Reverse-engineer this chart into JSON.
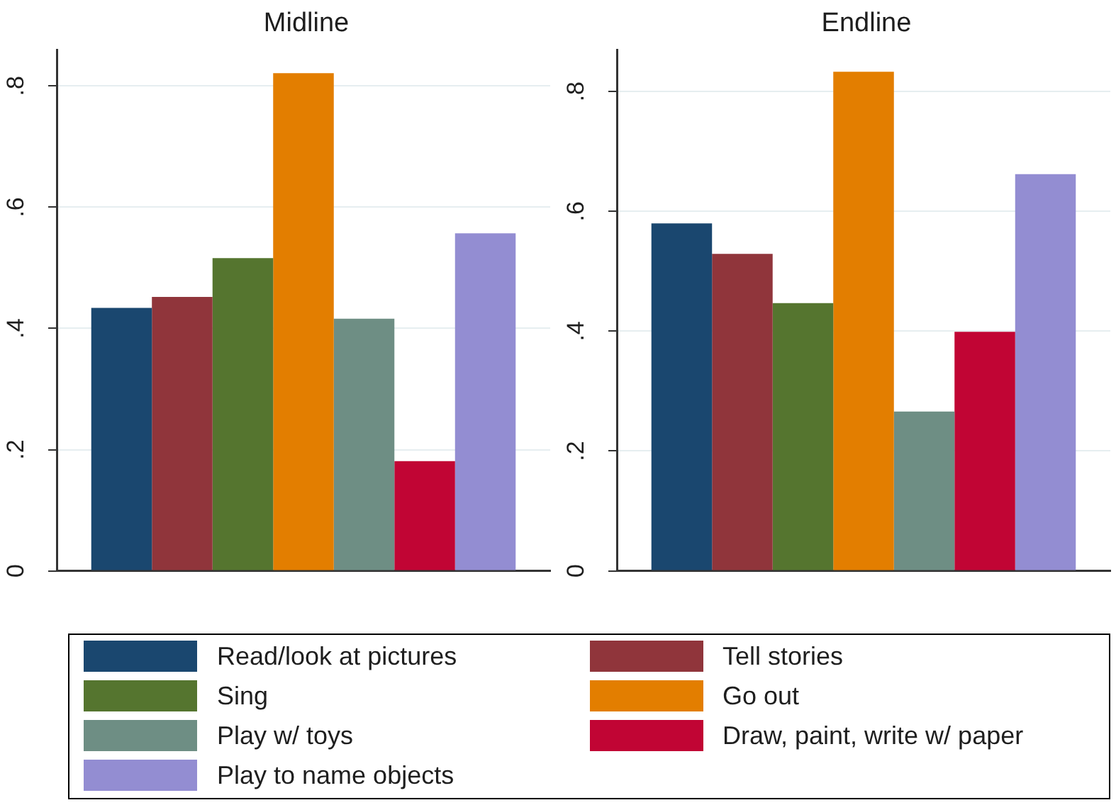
{
  "chart_data": [
    {
      "type": "bar",
      "title": "Midline",
      "categories": [
        null
      ],
      "ylim": [
        0,
        0.86
      ],
      "yticks": [
        0,
        {
          "value": 0.2,
          "label": ".2"
        },
        {
          "value": 0.4,
          "label": ".4"
        },
        {
          "value": 0.6,
          "label": ".6"
        },
        {
          "value": 0.8,
          "label": ".8"
        }
      ],
      "grid": "y",
      "tick_labels": "y",
      "legend": "bottom",
      "series": [
        {
          "name": "Read/look at pictures",
          "color": "#1a476f",
          "values": [
            0.434
          ]
        },
        {
          "name": "Tell stories",
          "color": "#90353b",
          "values": [
            0.452
          ]
        },
        {
          "name": "Sing",
          "color": "#55752f",
          "values": [
            0.516
          ]
        },
        {
          "name": "Go out",
          "color": "#e37e00",
          "values": [
            0.821
          ]
        },
        {
          "name": "Play w/ toys",
          "color": "#6e8e84",
          "values": [
            0.416
          ]
        },
        {
          "name": "Draw, paint, write w/ paper",
          "color": "#c10534",
          "values": [
            0.181
          ]
        },
        {
          "name": "Play to name objects",
          "color": "#938dd2",
          "values": [
            0.557
          ]
        }
      ]
    },
    {
      "type": "bar",
      "title": "Endline",
      "categories": [
        null
      ],
      "ylim": [
        0,
        0.87
      ],
      "yticks": [
        0,
        {
          "value": 0.2,
          "label": ".2"
        },
        {
          "value": 0.4,
          "label": ".4"
        },
        {
          "value": 0.6,
          "label": ".6"
        },
        {
          "value": 0.8,
          "label": ".8"
        }
      ],
      "grid": "y",
      "tick_labels": "y",
      "series": [
        {
          "color": "#1a476f",
          "values": [
            0.58
          ]
        },
        {
          "color": "#90353b",
          "values": [
            0.529
          ]
        },
        {
          "color": "#55752f",
          "values": [
            0.447
          ]
        },
        {
          "color": "#e37e00",
          "values": [
            0.833
          ]
        },
        {
          "color": "#6e8e84",
          "values": [
            0.266
          ]
        },
        {
          "color": "#c10534",
          "values": [
            0.399
          ]
        },
        {
          "color": "#938dd2",
          "values": [
            0.662
          ]
        }
      ]
    }
  ]
}
